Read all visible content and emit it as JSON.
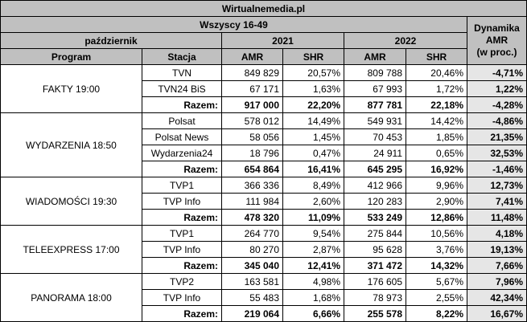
{
  "header": {
    "site": "Wirtualnemedia.pl",
    "target": "Wszyscy 16-49",
    "month": "październik",
    "year1": "2021",
    "year2": "2022",
    "dynamics_line1": "Dynamika",
    "dynamics_line2": "AMR",
    "dynamics_line3": "(w proc.)",
    "col_program": "Program",
    "col_station": "Stacja",
    "col_amr1": "AMR",
    "col_shr1": "SHR",
    "col_amr2": "AMR",
    "col_shr2": "SHR"
  },
  "groups": [
    {
      "program": "FAKTY 19:00",
      "rows": [
        {
          "station": "TVN",
          "amr1": "849 829",
          "shr1": "20,57%",
          "amr2": "809 788",
          "shr2": "20,46%",
          "dyn": "-4,71%"
        },
        {
          "station": "TVN24 BiS",
          "amr1": "67 171",
          "shr1": "1,63%",
          "amr2": "67 993",
          "shr2": "1,72%",
          "dyn": "1,22%"
        }
      ],
      "total": {
        "label": "Razem:",
        "amr1": "917 000",
        "shr1": "22,20%",
        "amr2": "877 781",
        "shr2": "22,18%",
        "dyn": "-4,28%"
      }
    },
    {
      "program": "WYDARZENIA 18:50",
      "rows": [
        {
          "station": "Polsat",
          "amr1": "578 012",
          "shr1": "14,49%",
          "amr2": "549 931",
          "shr2": "14,42%",
          "dyn": "-4,86%"
        },
        {
          "station": "Polsat News",
          "amr1": "58 056",
          "shr1": "1,45%",
          "amr2": "70 453",
          "shr2": "1,85%",
          "dyn": "21,35%"
        },
        {
          "station": "Wydarzenia24",
          "amr1": "18 796",
          "shr1": "0,47%",
          "amr2": "24 911",
          "shr2": "0,65%",
          "dyn": "32,53%"
        }
      ],
      "total": {
        "label": "Razem:",
        "amr1": "654 864",
        "shr1": "16,41%",
        "amr2": "645 295",
        "shr2": "16,92%",
        "dyn": "-1,46%"
      }
    },
    {
      "program": "WIADOMOŚCI 19:30",
      "rows": [
        {
          "station": "TVP1",
          "amr1": "366 336",
          "shr1": "8,49%",
          "amr2": "412 966",
          "shr2": "9,96%",
          "dyn": "12,73%"
        },
        {
          "station": "TVP Info",
          "amr1": "111 984",
          "shr1": "2,60%",
          "amr2": "120 283",
          "shr2": "2,90%",
          "dyn": "7,41%"
        }
      ],
      "total": {
        "label": "Razem:",
        "amr1": "478 320",
        "shr1": "11,09%",
        "amr2": "533 249",
        "shr2": "12,86%",
        "dyn": "11,48%"
      }
    },
    {
      "program": "TELEEXPRESS 17:00",
      "rows": [
        {
          "station": "TVP1",
          "amr1": "264 770",
          "shr1": "9,54%",
          "amr2": "275 844",
          "shr2": "10,56%",
          "dyn": "4,18%"
        },
        {
          "station": "TVP Info",
          "amr1": "80 270",
          "shr1": "2,87%",
          "amr2": "95 628",
          "shr2": "3,76%",
          "dyn": "19,13%"
        }
      ],
      "total": {
        "label": "Razem:",
        "amr1": "345 040",
        "shr1": "12,41%",
        "amr2": "371 472",
        "shr2": "14,32%",
        "dyn": "7,66%"
      }
    },
    {
      "program": "PANORAMA 18:00",
      "rows": [
        {
          "station": "TVP2",
          "amr1": "163 581",
          "shr1": "4,98%",
          "amr2": "176 605",
          "shr2": "5,67%",
          "dyn": "7,96%"
        },
        {
          "station": "TVP Info",
          "amr1": "55 483",
          "shr1": "1,68%",
          "amr2": "78 973",
          "shr2": "2,55%",
          "dyn": "42,34%"
        }
      ],
      "total": {
        "label": "Razem:",
        "amr1": "219 064",
        "shr1": "6,66%",
        "amr2": "255 578",
        "shr2": "8,22%",
        "dyn": "16,67%"
      }
    }
  ]
}
